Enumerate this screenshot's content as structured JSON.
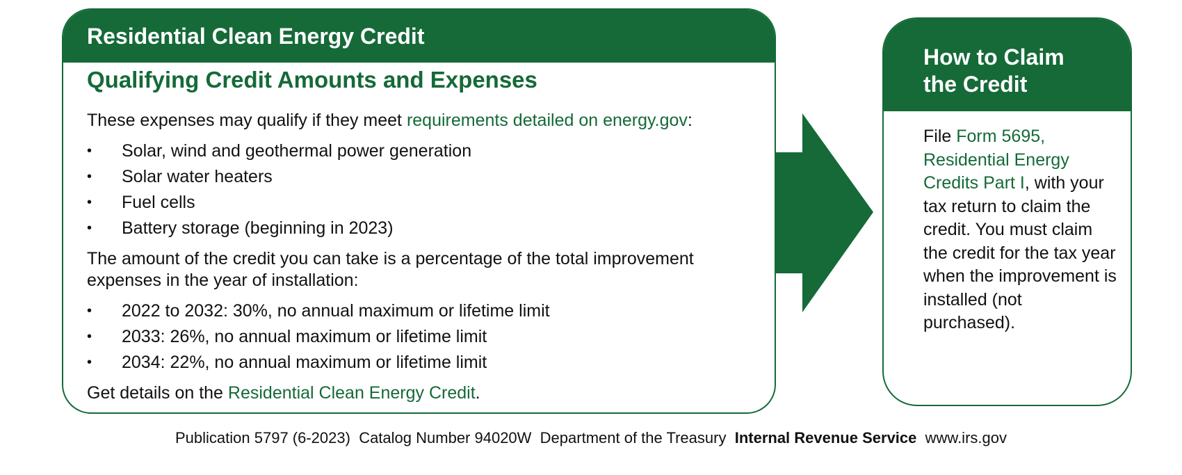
{
  "left_panel": {
    "title": "Residential Clean Energy Credit",
    "subtitle": "Qualifying Credit Amounts and Expenses",
    "intro_prefix": "These expenses may qualify if they meet ",
    "intro_link": "requirements detailed on energy.gov",
    "intro_suffix": ":",
    "expenses": [
      "Solar, wind and geothermal power generation",
      "Solar water heaters",
      "Fuel cells",
      "Battery storage (beginning in 2023)"
    ],
    "amount_text": "The amount of the credit you can take is a percentage of the total improvement expenses in the year of installation:",
    "rates": [
      "2022 to 2032: 30%, no annual maximum or lifetime limit",
      "2033: 26%, no annual maximum or lifetime limit",
      "2034: 22%, no annual maximum or lifetime limit"
    ],
    "details_prefix": "Get details on the ",
    "details_link": "Residential Clean Energy Credit",
    "details_suffix": "."
  },
  "right_panel": {
    "title_line1": "How to Claim",
    "title_line2": "the Credit",
    "body_prefix": "File ",
    "body_link": "Form 5695, Residential Energy Credits Part I",
    "body_rest": ", with your tax return to claim the credit. You must claim the credit for the tax year when the improvement is installed (not purchased)."
  },
  "footer": {
    "publication": "Publication 5797 (6-2023)",
    "catalog": "Catalog Number 94020W",
    "department": "Department of the Treasury",
    "agency": "Internal Revenue Service",
    "website": "www.irs.gov"
  },
  "colors": {
    "brand_green": "#156a38"
  },
  "icons": {
    "arrow": "right-arrow-icon"
  }
}
